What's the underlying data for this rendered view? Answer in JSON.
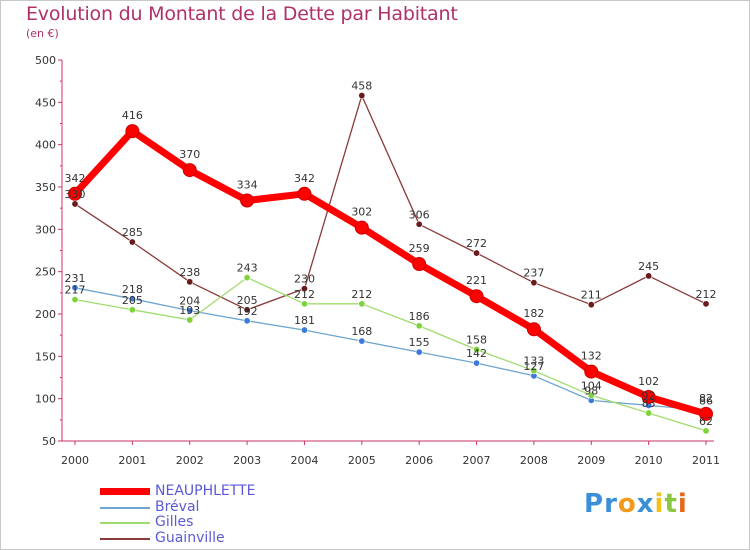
{
  "title": "Evolution du Montant de la Dette par Habitant",
  "subtitle": "(en €)",
  "logo": {
    "text": "Proxiti",
    "letters": [
      {
        "ch": "P",
        "color": "#3a8fd8"
      },
      {
        "ch": "r",
        "color": "#3a8fd8"
      },
      {
        "ch": "o",
        "color": "#f29a1a"
      },
      {
        "ch": "x",
        "color": "#3a8fd8"
      },
      {
        "ch": "i",
        "color": "#f2c21a"
      },
      {
        "ch": "t",
        "color": "#8bc63f"
      },
      {
        "ch": "i",
        "color": "#e8681a"
      }
    ]
  },
  "chart_data": {
    "type": "line",
    "title": "Evolution du Montant de la Dette par Habitant",
    "subtitle": "(en €)",
    "x": [
      "2000",
      "2001",
      "2002",
      "2003",
      "2004",
      "2005",
      "2006",
      "2007",
      "2008",
      "2009",
      "2010",
      "2011"
    ],
    "ylim": [
      50,
      500
    ],
    "yticks": [
      50,
      100,
      150,
      200,
      250,
      300,
      350,
      400,
      450,
      500
    ],
    "grid": false,
    "legend_position": "bottom-left",
    "series": [
      {
        "name": "NEAUPHLETTE",
        "color": "#ff0000",
        "width": 7,
        "marker": "#ff0000",
        "values": [
          342,
          416,
          370,
          334,
          342,
          302,
          259,
          221,
          182,
          132,
          102,
          82
        ]
      },
      {
        "name": "Bréval",
        "color": "#6ea6d0",
        "width": 1.3,
        "marker": "#3a7ad8",
        "values": [
          231,
          218,
          204,
          192,
          181,
          168,
          155,
          142,
          127,
          98,
          92,
          86
        ]
      },
      {
        "name": "Gilles",
        "color": "#9fdc6e",
        "width": 1.3,
        "marker": "#7ed23a",
        "values": [
          217,
          205,
          193,
          243,
          212,
          212,
          186,
          158,
          133,
          104,
          83,
          62
        ]
      },
      {
        "name": "Guainville",
        "color": "#8a3a3a",
        "width": 1.3,
        "marker": "#6a1a1a",
        "values": [
          330,
          285,
          238,
          205,
          230,
          458,
          306,
          272,
          237,
          211,
          245,
          212
        ]
      }
    ]
  }
}
